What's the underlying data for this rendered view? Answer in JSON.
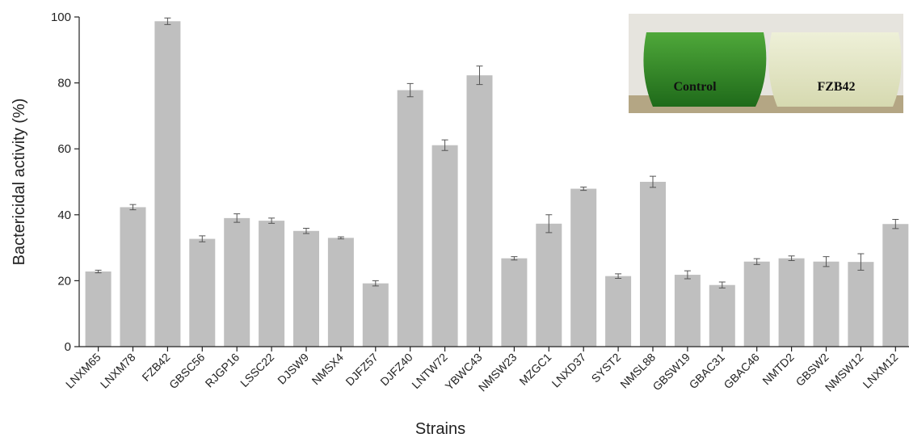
{
  "chart_data": {
    "type": "bar",
    "xlabel": "Strains",
    "ylabel": "Bactericidal activity (%)",
    "categories": [
      "LNXM65",
      "LNXM78",
      "FZB42",
      "GBSC56",
      "RJGP16",
      "LSSC22",
      "DJSW9",
      "NMSX4",
      "DJFZ57",
      "DJFZ40",
      "LNTW72",
      "YBWC43",
      "NMSW23",
      "MZGC1",
      "LNXD37",
      "SYST2",
      "NMSL88",
      "GBSW19",
      "GBAC31",
      "GBAC46",
      "NMTD2",
      "GBSW2",
      "NMSW12",
      "LNXM12"
    ],
    "values": [
      22.8,
      42.3,
      98.7,
      32.7,
      39,
      38.2,
      35.1,
      33,
      19.2,
      77.8,
      61.1,
      82.3,
      26.8,
      37.3,
      47.9,
      21.4,
      50,
      21.8,
      18.7,
      25.8,
      26.8,
      25.8,
      25.7,
      37.2
    ],
    "errors": [
      0.4,
      0.8,
      1,
      0.9,
      1.3,
      0.8,
      0.8,
      0.3,
      0.8,
      2,
      1.6,
      2.8,
      0.5,
      2.7,
      0.5,
      0.7,
      1.7,
      1.2,
      0.9,
      0.9,
      0.7,
      1.5,
      2.5,
      1.4
    ],
    "color": "#bfbfbf",
    "ylim": [
      0,
      100
    ],
    "yticks": [
      0,
      20,
      40,
      60,
      80,
      100
    ],
    "annotations": [
      "Control",
      "FZB42"
    ]
  }
}
